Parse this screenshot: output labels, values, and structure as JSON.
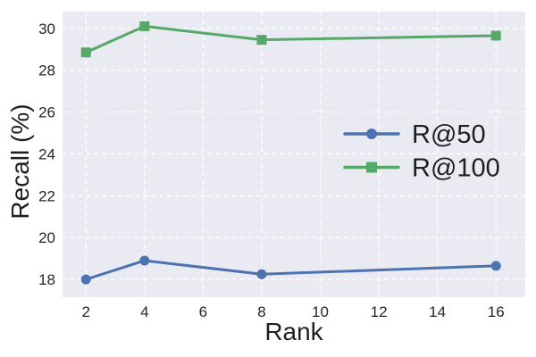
{
  "figure": {
    "background": "#ffffff"
  },
  "chart_data": {
    "type": "line",
    "title": "",
    "xlabel": "Rank",
    "ylabel": "Recall (%)",
    "xlim": [
      1.2,
      17.0
    ],
    "ylim": [
      17.15,
      30.8
    ],
    "xticks": [
      2,
      4,
      6,
      8,
      10,
      12,
      14,
      16
    ],
    "yticks": [
      18,
      20,
      22,
      24,
      26,
      28,
      30
    ],
    "grid": "dashed-white",
    "plot_background": "#eaeaf2",
    "legend_position": "center-right",
    "legend_frame": false,
    "series": [
      {
        "name": "R@50",
        "color": "#4c72b0",
        "marker": "circle",
        "x": [
          2,
          4,
          8,
          16
        ],
        "y": [
          18.0,
          18.9,
          18.25,
          18.65
        ]
      },
      {
        "name": "R@100",
        "color": "#55a868",
        "marker": "square",
        "x": [
          2,
          4,
          8,
          16
        ],
        "y": [
          28.85,
          30.1,
          29.45,
          29.65
        ]
      }
    ]
  }
}
